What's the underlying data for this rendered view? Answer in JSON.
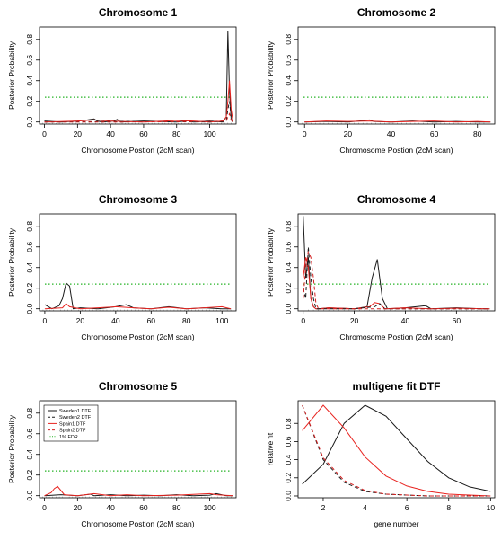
{
  "colors": {
    "sweden1": "#1a1a1a",
    "sweden2": "#1a1a1a",
    "spain1": "#e8231f",
    "spain2": "#d42020",
    "fdr": "#27b427"
  },
  "chart_data": [
    {
      "type": "line",
      "title": "Chromosome 1",
      "xlabel": "Chromosome Postion  (2cM scan)",
      "ylabel": "Posterior Probability",
      "xlim": [
        -3,
        116
      ],
      "ylim": [
        -0.02,
        0.92
      ],
      "xticks": [
        0,
        20,
        40,
        60,
        80,
        100
      ],
      "yticks": [
        0.0,
        0.2,
        0.4,
        0.6,
        0.8
      ],
      "fdr": 0.24,
      "series": [
        {
          "key": "sweden1",
          "style": "solid",
          "x": [
            0,
            10,
            20,
            26,
            30,
            32,
            35,
            42,
            44,
            46,
            60,
            80,
            88,
            90,
            100,
            108,
            110,
            111,
            112,
            113,
            114
          ],
          "y": [
            0.01,
            0.0,
            0.01,
            0.02,
            0.03,
            0.01,
            0.0,
            0.01,
            0.025,
            0.0,
            0.01,
            0.0,
            0.015,
            0.0,
            0.01,
            0.0,
            0.05,
            0.88,
            0.3,
            0.02,
            0.0
          ]
        },
        {
          "key": "spain1",
          "style": "solid",
          "x": [
            0,
            20,
            30,
            40,
            60,
            80,
            90,
            100,
            108,
            110,
            111,
            112,
            113,
            114
          ],
          "y": [
            0.0,
            0.01,
            0.02,
            0.01,
            0.0,
            0.015,
            0.01,
            0.0,
            0.01,
            0.05,
            0.2,
            0.4,
            0.12,
            0.02
          ]
        },
        {
          "key": "sweden2",
          "style": "dashed",
          "x": [
            0,
            50,
            100,
            110,
            111,
            112,
            113,
            114
          ],
          "y": [
            0.0,
            0.005,
            0.0,
            0.01,
            0.12,
            0.2,
            0.05,
            0.0
          ]
        },
        {
          "key": "spain2",
          "style": "dashed",
          "x": [
            0,
            50,
            100,
            110,
            111,
            112,
            113,
            114
          ],
          "y": [
            0.0,
            0.0,
            0.005,
            0.01,
            0.05,
            0.08,
            0.02,
            0.0
          ]
        }
      ]
    },
    {
      "type": "line",
      "title": "Chromosome 2",
      "xlabel": "Chromosome Postion  (2cM scan)",
      "ylabel": "Posterior Probability",
      "xlim": [
        -3,
        88
      ],
      "ylim": [
        -0.02,
        0.92
      ],
      "xticks": [
        0,
        20,
        40,
        60,
        80
      ],
      "yticks": [
        0.0,
        0.2,
        0.4,
        0.6,
        0.8
      ],
      "fdr": 0.24,
      "series": [
        {
          "key": "sweden1",
          "style": "solid",
          "x": [
            0,
            10,
            20,
            28,
            30,
            32,
            40,
            50,
            60,
            70,
            80,
            86
          ],
          "y": [
            0.0,
            0.005,
            0.0,
            0.015,
            0.02,
            0.005,
            0.0,
            0.01,
            0.0,
            0.005,
            0.0,
            0.0
          ]
        },
        {
          "key": "spain1",
          "style": "solid",
          "x": [
            0,
            10,
            20,
            30,
            40,
            50,
            60,
            70,
            80,
            86
          ],
          "y": [
            0.0,
            0.01,
            0.005,
            0.01,
            0.0,
            0.005,
            0.01,
            0.0,
            0.005,
            0.0
          ]
        }
      ]
    },
    {
      "type": "line",
      "title": "Chromosome 3",
      "xlabel": "Chromosome Postion  (2cM scan)",
      "ylabel": "Posterior Probability",
      "xlim": [
        -3,
        108
      ],
      "ylim": [
        -0.02,
        0.92
      ],
      "xticks": [
        0,
        20,
        40,
        60,
        80,
        100
      ],
      "yticks": [
        0.0,
        0.2,
        0.4,
        0.6,
        0.8
      ],
      "fdr": 0.24,
      "series": [
        {
          "key": "sweden1",
          "style": "solid",
          "x": [
            0,
            4,
            8,
            10,
            12,
            14,
            16,
            20,
            30,
            40,
            46,
            50,
            60,
            70,
            80,
            90,
            100,
            105
          ],
          "y": [
            0.04,
            0.0,
            0.03,
            0.1,
            0.25,
            0.22,
            0.0,
            0.01,
            0.0,
            0.02,
            0.04,
            0.01,
            0.0,
            0.02,
            0.0,
            0.01,
            0.0,
            0.0
          ]
        },
        {
          "key": "spain1",
          "style": "solid",
          "x": [
            0,
            10,
            12,
            14,
            20,
            30,
            40,
            50,
            60,
            70,
            80,
            90,
            100,
            105
          ],
          "y": [
            0.0,
            0.01,
            0.05,
            0.02,
            0.0,
            0.01,
            0.02,
            0.01,
            0.0,
            0.015,
            0.0,
            0.01,
            0.02,
            0.0
          ]
        }
      ]
    },
    {
      "type": "line",
      "title": "Chromosome 4",
      "xlabel": "Chromosome Postion  (2cM scan)",
      "ylabel": "Posterior Probability",
      "xlim": [
        -2,
        75
      ],
      "ylim": [
        -0.02,
        0.92
      ],
      "xticks": [
        0,
        20,
        40,
        60
      ],
      "yticks": [
        0.0,
        0.2,
        0.4,
        0.6,
        0.8
      ],
      "fdr": 0.24,
      "series": [
        {
          "key": "sweden1",
          "style": "solid",
          "x": [
            0,
            1,
            2,
            3,
            4,
            5,
            6,
            10,
            20,
            25,
            27,
            29,
            31,
            33,
            40,
            48,
            50,
            60,
            70,
            73
          ],
          "y": [
            0.9,
            0.3,
            0.5,
            0.1,
            0.02,
            0.0,
            0.0,
            0.01,
            0.0,
            0.02,
            0.3,
            0.48,
            0.1,
            0.0,
            0.01,
            0.03,
            0.0,
            0.01,
            0.0,
            0.0
          ]
        },
        {
          "key": "spain1",
          "style": "solid",
          "x": [
            0,
            1,
            2,
            3,
            4,
            5,
            6,
            10,
            20,
            26,
            28,
            30,
            32,
            40,
            50,
            60,
            73
          ],
          "y": [
            0.3,
            0.5,
            0.4,
            0.1,
            0.02,
            0.0,
            0.0,
            0.01,
            0.0,
            0.02,
            0.06,
            0.05,
            0.0,
            0.01,
            0.0,
            0.005,
            0.0
          ]
        },
        {
          "key": "sweden2",
          "style": "dashed",
          "x": [
            0,
            1,
            2,
            3,
            4,
            5,
            6,
            10,
            20,
            28,
            30,
            32,
            40,
            73
          ],
          "y": [
            0.2,
            0.1,
            0.6,
            0.3,
            0.1,
            0.0,
            0.0,
            0.0,
            0.0,
            0.02,
            0.05,
            0.0,
            0.0,
            0.0
          ]
        },
        {
          "key": "spain2",
          "style": "dashed",
          "x": [
            0,
            1,
            2,
            3,
            4,
            5,
            6,
            10,
            73
          ],
          "y": [
            0.1,
            0.4,
            0.55,
            0.5,
            0.3,
            0.05,
            0.0,
            0.0,
            0.0
          ]
        }
      ]
    },
    {
      "type": "line",
      "title": "Chromosome 5",
      "xlabel": "Chromosome Postion  (2cM scan)",
      "ylabel": "Posterior Probability",
      "xlim": [
        -3,
        116
      ],
      "ylim": [
        -0.02,
        0.92
      ],
      "xticks": [
        0,
        20,
        40,
        60,
        80,
        100
      ],
      "yticks": [
        0.0,
        0.2,
        0.4,
        0.6,
        0.8
      ],
      "fdr": 0.24,
      "legend": {
        "position": "top-left",
        "entries": [
          {
            "key": "sweden1",
            "style": "solid",
            "label": "Sweden1 DTF"
          },
          {
            "key": "sweden2",
            "style": "dashed",
            "label": "Sweden2 DTF"
          },
          {
            "key": "spain1",
            "style": "solid",
            "label": "Spain1 DTF"
          },
          {
            "key": "spain2",
            "style": "dashed",
            "label": "Spain2 DTF"
          },
          {
            "key": "fdr",
            "style": "dotted",
            "label": "1% FDR"
          }
        ]
      },
      "series": [
        {
          "key": "sweden1",
          "style": "solid",
          "x": [
            0,
            10,
            20,
            28,
            30,
            40,
            50,
            60,
            70,
            80,
            90,
            100,
            104,
            110,
            114
          ],
          "y": [
            0.0,
            0.01,
            0.0,
            0.015,
            0.0,
            0.01,
            0.0,
            0.005,
            0.0,
            0.01,
            0.0,
            0.005,
            0.02,
            0.0,
            0.0
          ]
        },
        {
          "key": "spain1",
          "style": "solid",
          "x": [
            0,
            4,
            6,
            8,
            10,
            12,
            20,
            30,
            40,
            50,
            60,
            80,
            100,
            104,
            114
          ],
          "y": [
            0.0,
            0.03,
            0.07,
            0.09,
            0.05,
            0.01,
            0.0,
            0.02,
            0.0,
            0.01,
            0.0,
            0.005,
            0.02,
            0.01,
            0.0
          ]
        }
      ]
    },
    {
      "type": "line",
      "title": "multigene fit DTF",
      "xlabel": "gene number",
      "ylabel": "relative fit",
      "xlim": [
        0.8,
        10.2
      ],
      "ylim": [
        -0.02,
        1.05
      ],
      "xticks": [
        2,
        4,
        6,
        8,
        10
      ],
      "yticks": [
        0.0,
        0.2,
        0.4,
        0.6,
        0.8
      ],
      "series": [
        {
          "key": "sweden1",
          "style": "solid",
          "x": [
            1,
            2,
            3,
            4,
            5,
            6,
            7,
            8,
            9,
            10
          ],
          "y": [
            0.13,
            0.35,
            0.8,
            1.0,
            0.88,
            0.63,
            0.38,
            0.2,
            0.1,
            0.05
          ]
        },
        {
          "key": "spain1",
          "style": "solid",
          "x": [
            1,
            2,
            3,
            4,
            5,
            6,
            7,
            8,
            9,
            10
          ],
          "y": [
            0.72,
            1.0,
            0.75,
            0.43,
            0.22,
            0.11,
            0.05,
            0.02,
            0.01,
            0.0
          ]
        },
        {
          "key": "sweden2",
          "style": "dashed",
          "x": [
            1,
            2,
            3,
            4,
            5,
            6,
            7,
            8,
            9,
            10
          ],
          "y": [
            1.0,
            0.4,
            0.15,
            0.05,
            0.02,
            0.01,
            0.0,
            0.0,
            0.0,
            0.0
          ]
        },
        {
          "key": "spain2",
          "style": "dashed",
          "x": [
            1,
            2,
            3,
            4,
            5,
            6,
            7,
            8,
            9,
            10
          ],
          "y": [
            1.0,
            0.42,
            0.17,
            0.06,
            0.02,
            0.01,
            0.0,
            0.0,
            0.0,
            0.0
          ]
        }
      ]
    }
  ]
}
